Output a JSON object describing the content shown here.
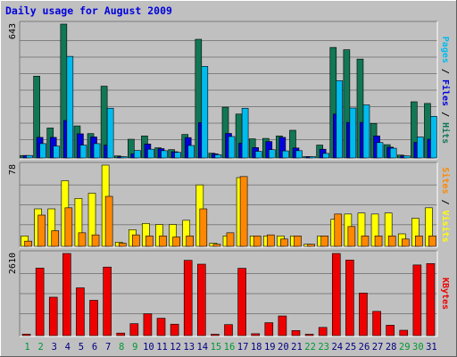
{
  "chart_data": {
    "type": "bar",
    "title": "Daily usage for August 2009",
    "days": [
      "1",
      "2",
      "3",
      "4",
      "5",
      "6",
      "7",
      "8",
      "9",
      "10",
      "11",
      "12",
      "13",
      "14",
      "15",
      "16",
      "17",
      "18",
      "19",
      "20",
      "21",
      "22",
      "23",
      "24",
      "25",
      "26",
      "27",
      "28",
      "29",
      "30",
      "31"
    ],
    "weekend_days": [
      "1",
      "2",
      "8",
      "9",
      "15",
      "16",
      "22",
      "23",
      "29",
      "30"
    ],
    "colors": {
      "hits": "#117755",
      "files": "#0000dd",
      "pages": "#00bbee",
      "visits": "#ff8800",
      "sites": "#ffff00",
      "kbytes": "#ee0000",
      "weekend": "#009933",
      "weekday": "#000080",
      "title": "#0000dd",
      "plot_bg": "#c0c0c0",
      "frame_bg": "#c0c0c0"
    },
    "panels": [
      {
        "id": "hits",
        "ymax": 643,
        "ymax_label": "643",
        "ylabel_parts": [
          {
            "text": "Pages",
            "color": "#00bbee"
          },
          {
            "text": " / ",
            "color": "#000000"
          },
          {
            "text": "Files",
            "color": "#0000dd"
          },
          {
            "text": " / ",
            "color": "#000000"
          },
          {
            "text": "Hits",
            "color": "#117755"
          }
        ],
        "series": [
          {
            "name": "Hits",
            "color": "#117755",
            "values": [
              12,
              393,
              144,
              643,
              154,
              117,
              345,
              10,
              90,
              106,
              49,
              40,
              113,
              570,
              23,
              244,
              211,
              92,
              94,
              106,
              133,
              5,
              62,
              531,
              520,
              475,
              166,
              64,
              14,
              270,
              262
            ]
          },
          {
            "name": "Files",
            "color": "#0000dd",
            "values": [
              12,
              99,
              99,
              180,
              116,
              101,
              62,
              5,
              20,
              67,
              45,
              30,
              98,
              170,
              20,
              118,
              71,
              50,
              79,
              99,
              48,
              3,
              42,
              211,
              171,
              171,
              106,
              52,
              10,
              75,
              90
            ]
          },
          {
            "name": "Pages",
            "color": "#00bbee",
            "values": [
              12,
              69,
              57,
              488,
              62,
              69,
              239,
              5,
              36,
              42,
              35,
              27,
              60,
              440,
              16,
              103,
              239,
              32,
              40,
              34,
              35,
              3,
              22,
              371,
              240,
              255,
              74,
              47,
              10,
              101,
              200
            ]
          }
        ]
      },
      {
        "id": "visits",
        "ymax": 78,
        "ymax_label": "78",
        "ylabel_parts": [
          {
            "text": "Sites",
            "color": "#ff8800"
          },
          {
            "text": " / ",
            "color": "#000000"
          },
          {
            "text": "Visits",
            "color": "#ffff00"
          }
        ],
        "series": [
          {
            "name": "Visits",
            "color": "#ffff00",
            "values": [
              10,
              36,
              36,
              63,
              46,
              51,
              78,
              4,
              16,
              22,
              21,
              21,
              25,
              59,
              3,
              10,
              66,
              10,
              10,
              10,
              10,
              2,
              10,
              26,
              31,
              32,
              31,
              32,
              12,
              27,
              37
            ]
          },
          {
            "name": "Sites",
            "color": "#ff8800",
            "values": [
              5,
              30,
              15,
              37,
              13,
              11,
              48,
              3,
              11,
              10,
              10,
              9,
              10,
              36,
              2,
              13,
              67,
              10,
              11,
              7,
              10,
              2,
              10,
              31,
              19,
              10,
              10,
              10,
              7,
              10,
              10
            ]
          }
        ]
      },
      {
        "id": "kbytes",
        "ymax": 2610,
        "ymax_label": "2610",
        "ylabel_parts": [
          {
            "text": "KBytes",
            "color": "#ee0000"
          }
        ],
        "series": [
          {
            "name": "KBytes",
            "color": "#ee0000",
            "values": [
              45,
              2145,
              1221,
              2610,
              1518,
              1122,
              2178,
              80,
              380,
              693,
              552,
              363,
              2392,
              2270,
              40,
              350,
              2140,
              60,
              410,
              623,
              160,
              8,
              260,
              2610,
              2400,
              1353,
              770,
              330,
              170,
              2245,
              2290
            ]
          }
        ]
      }
    ]
  }
}
